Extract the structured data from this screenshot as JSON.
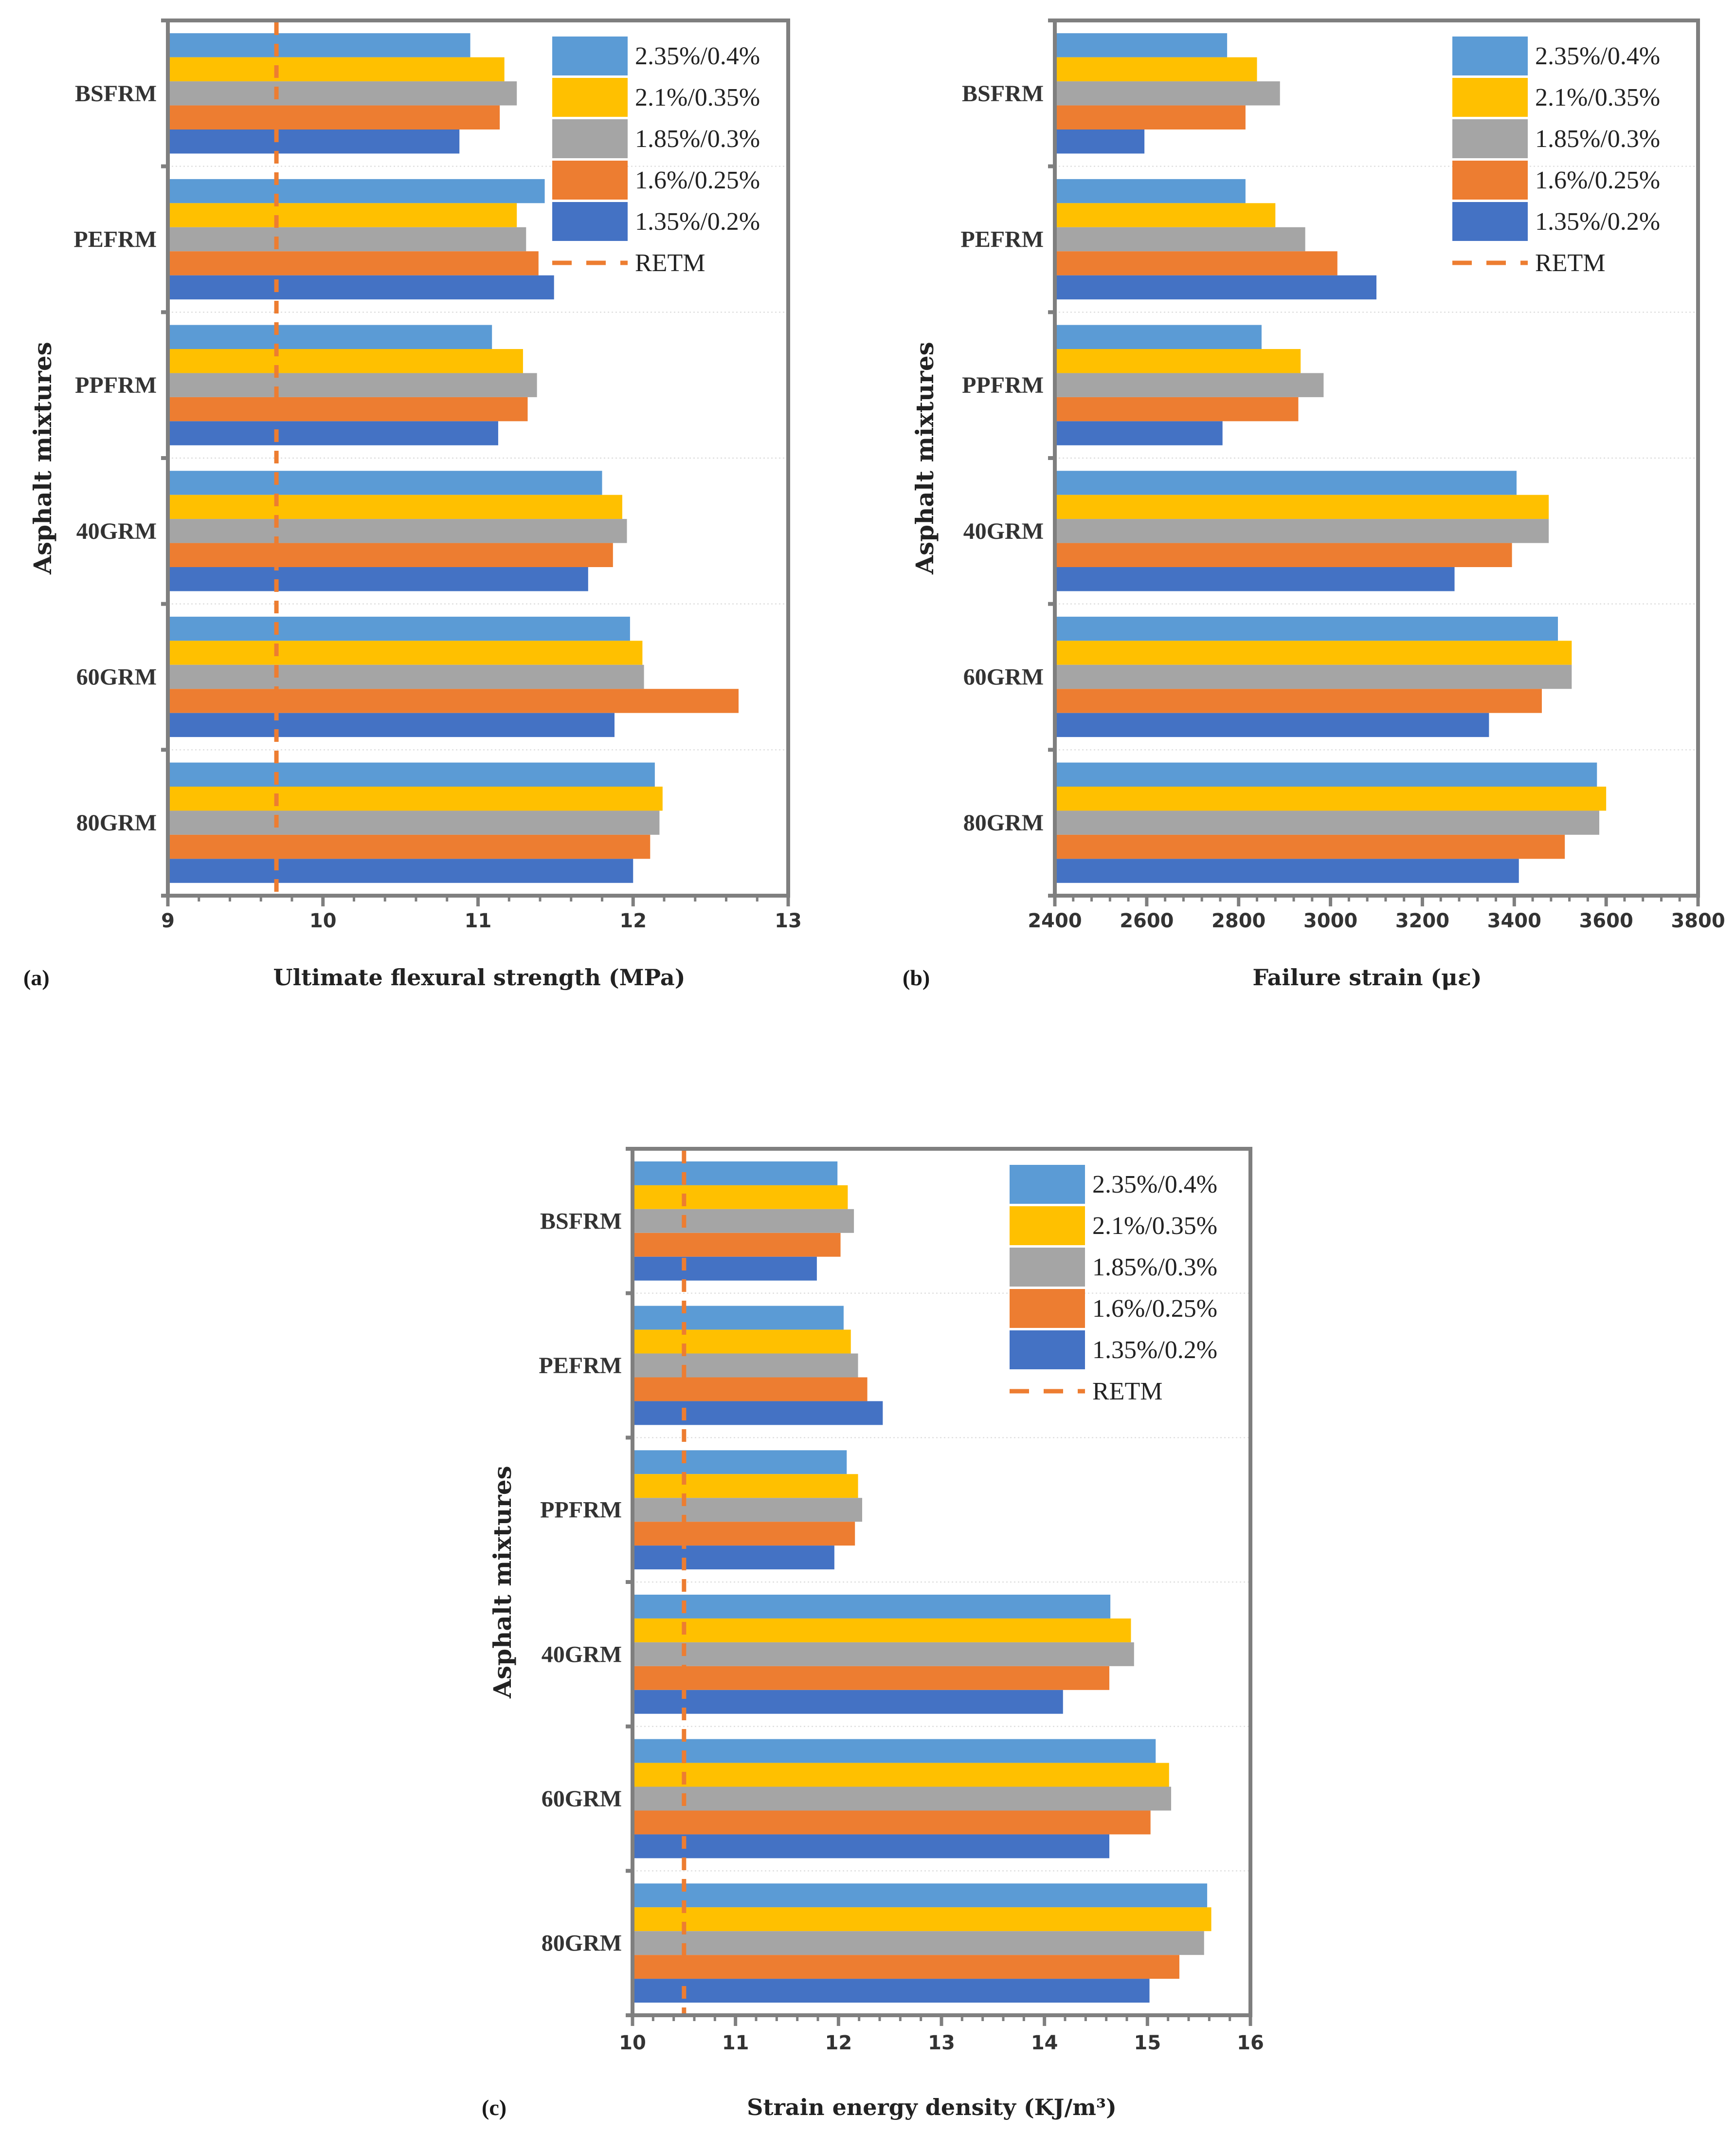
{
  "colors": {
    "2.35%/0.4%": "#5b9bd5",
    "2.1%/0.35%": "#ffc000",
    "1.85%/0.3%": "#a5a5a5",
    "1.6%/0.25%": "#ed7d31",
    "1.35%/0.2%": "#4472c4",
    "RETM": "#ed7d31",
    "axis": "#7f7f7f",
    "grid": "#d9d9d9"
  },
  "chart_data": [
    {
      "panel": "(a)",
      "type": "bar",
      "orientation": "horizontal",
      "title": "",
      "xlabel": "Ultimate flexural strength (MPa)",
      "ylabel": "Asphalt mixtures",
      "xlim": [
        9,
        13
      ],
      "xticks": [
        9,
        10,
        11,
        12,
        13
      ],
      "categories": [
        "BSFRM",
        "PEFRM",
        "PPFRM",
        "40GRM",
        "60GRM",
        "80GRM"
      ],
      "series": [
        {
          "name": "2.35%/0.4%",
          "values": [
            10.95,
            11.43,
            11.09,
            11.8,
            11.98,
            12.14
          ]
        },
        {
          "name": "2.1%/0.35%",
          "values": [
            11.17,
            11.25,
            11.29,
            11.93,
            12.06,
            12.19
          ]
        },
        {
          "name": "1.85%/0.3%",
          "values": [
            11.25,
            11.31,
            11.38,
            11.96,
            12.07,
            12.17
          ]
        },
        {
          "name": "1.6%/0.25%",
          "values": [
            11.14,
            11.39,
            11.32,
            11.87,
            12.68,
            12.11
          ]
        },
        {
          "name": "1.35%/0.2%",
          "values": [
            10.88,
            11.49,
            11.13,
            11.71,
            11.88,
            12.0
          ]
        }
      ],
      "reference": {
        "name": "RETM",
        "value": 9.7
      },
      "legend": "top-right",
      "grid": true
    },
    {
      "panel": "(b)",
      "type": "bar",
      "orientation": "horizontal",
      "title": "",
      "xlabel": "Failure strain (με)",
      "ylabel": "Asphalt mixtures",
      "xlim": [
        2400,
        3800
      ],
      "xticks": [
        2400,
        2600,
        2800,
        3000,
        3200,
        3400,
        3600,
        3800
      ],
      "categories": [
        "BSFRM",
        "PEFRM",
        "PPFRM",
        "40GRM",
        "60GRM",
        "80GRM"
      ],
      "series": [
        {
          "name": "2.35%/0.4%",
          "values": [
            2775,
            2815,
            2850,
            3405,
            3495,
            3580
          ]
        },
        {
          "name": "2.1%/0.35%",
          "values": [
            2840,
            2880,
            2935,
            3475,
            3525,
            3600
          ]
        },
        {
          "name": "1.85%/0.3%",
          "values": [
            2890,
            2945,
            2985,
            3475,
            3525,
            3585
          ]
        },
        {
          "name": "1.6%/0.25%",
          "values": [
            2815,
            3015,
            2930,
            3395,
            3460,
            3510
          ]
        },
        {
          "name": "1.35%/0.2%",
          "values": [
            2595,
            3100,
            2765,
            3270,
            3345,
            3410
          ]
        }
      ],
      "reference": {
        "name": "RETM",
        "value": null
      },
      "legend": "top-right",
      "grid": true
    },
    {
      "panel": "(c)",
      "type": "bar",
      "orientation": "horizontal",
      "title": "",
      "xlabel": "Strain energy density (KJ/m³)",
      "ylabel": "Asphalt mixtures",
      "xlim": [
        10,
        16
      ],
      "xticks": [
        10,
        11,
        12,
        13,
        14,
        15,
        16
      ],
      "categories": [
        "BSFRM",
        "PEFRM",
        "PPFRM",
        "40GRM",
        "60GRM",
        "80GRM"
      ],
      "series": [
        {
          "name": "2.35%/0.4%",
          "values": [
            11.99,
            12.05,
            12.08,
            14.64,
            15.08,
            15.58
          ]
        },
        {
          "name": "2.1%/0.35%",
          "values": [
            12.09,
            12.12,
            12.19,
            14.84,
            15.21,
            15.62
          ]
        },
        {
          "name": "1.85%/0.3%",
          "values": [
            12.15,
            12.19,
            12.23,
            14.87,
            15.23,
            15.55
          ]
        },
        {
          "name": "1.6%/0.25%",
          "values": [
            12.02,
            12.28,
            12.16,
            14.63,
            15.03,
            15.31
          ]
        },
        {
          "name": "1.35%/0.2%",
          "values": [
            11.79,
            12.43,
            11.96,
            14.18,
            14.63,
            15.02
          ]
        }
      ],
      "reference": {
        "name": "RETM",
        "value": 10.5
      },
      "legend": "top-right",
      "grid": true
    }
  ]
}
